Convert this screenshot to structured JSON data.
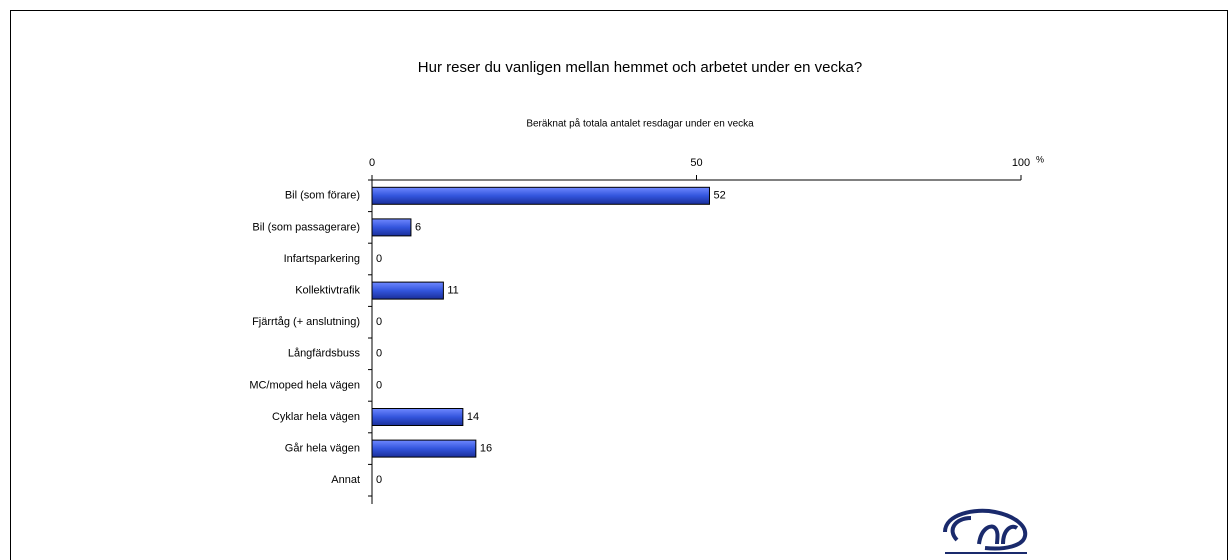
{
  "chart_data": {
    "type": "bar",
    "orientation": "horizontal",
    "title": "Hur reser du vanligen mellan hemmet och arbetet under en vecka?",
    "subtitle": "Beräknat på totala antalet resdagar under en vecka",
    "xlabel": "%",
    "categories": [
      "Bil (som förare)",
      "Bil (som passagerare)",
      "Infartsparkering",
      "Kollektivtrafik",
      "Fjärrtåg (+ anslutning)",
      "Långfärdsbuss",
      "MC/moped hela vägen",
      "Cyklar hela vägen",
      "Går hela vägen",
      "Annat"
    ],
    "values": [
      52,
      6,
      0,
      11,
      0,
      0,
      0,
      14,
      16,
      0
    ],
    "color": "#3355dd",
    "xlim": [
      0,
      100
    ],
    "xticks": [
      0,
      50,
      100
    ]
  }
}
